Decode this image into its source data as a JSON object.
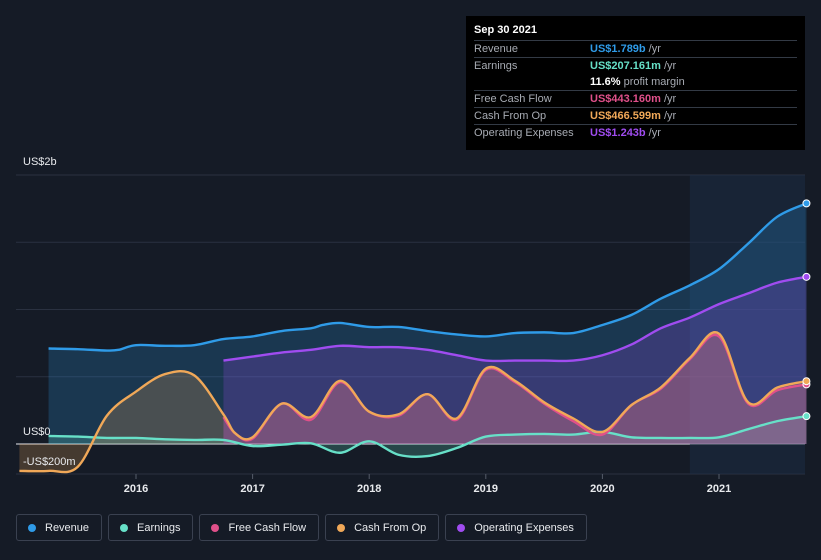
{
  "tooltip": {
    "date": "Sep 30 2021",
    "rows": [
      {
        "label": "Revenue",
        "value": "US$1.789b",
        "unit": "/yr",
        "color": "#2f9be8"
      },
      {
        "label": "Earnings",
        "value": "US$207.161m",
        "unit": "/yr",
        "color": "#67e0c8"
      },
      {
        "label": "",
        "value": "11.6%",
        "unit": "profit margin",
        "color": "#ffffff"
      },
      {
        "label": "Free Cash Flow",
        "value": "US$443.160m",
        "unit": "/yr",
        "color": "#e0508a"
      },
      {
        "label": "Cash From Op",
        "value": "US$466.599m",
        "unit": "/yr",
        "color": "#f0a858"
      },
      {
        "label": "Operating Expenses",
        "value": "US$1.243b",
        "unit": "/yr",
        "color": "#a04cf0"
      }
    ]
  },
  "legend": [
    {
      "label": "Revenue",
      "color": "#2f9be8"
    },
    {
      "label": "Earnings",
      "color": "#67e0c8"
    },
    {
      "label": "Free Cash Flow",
      "color": "#e0508a"
    },
    {
      "label": "Cash From Op",
      "color": "#f0a858"
    },
    {
      "label": "Operating Expenses",
      "color": "#a04cf0"
    }
  ],
  "chart_data": {
    "type": "area",
    "y_labels": {
      "top": "US$2b",
      "zero": "US$0",
      "bottom": "-US$200m"
    },
    "ylim": [
      -200,
      2000
    ],
    "x_ticks": [
      "2016",
      "2017",
      "2018",
      "2019",
      "2020",
      "2021"
    ],
    "x_tick_values": [
      2016,
      2017,
      2018,
      2019,
      2020,
      2021
    ],
    "series": [
      {
        "name": "Revenue",
        "color": "#2f9be8",
        "x": [
          2015.25,
          2015.5,
          2015.75,
          2015.85,
          2016.0,
          2016.25,
          2016.5,
          2016.75,
          2017.0,
          2017.25,
          2017.5,
          2017.6,
          2017.75,
          2018.0,
          2018.25,
          2018.5,
          2018.75,
          2019.0,
          2019.25,
          2019.5,
          2019.75,
          2020.0,
          2020.25,
          2020.5,
          2020.75,
          2021.0,
          2021.25,
          2021.5,
          2021.75
        ],
        "values": [
          710,
          705,
          695,
          700,
          735,
          730,
          735,
          780,
          800,
          840,
          860,
          885,
          900,
          870,
          870,
          840,
          815,
          800,
          825,
          830,
          825,
          885,
          960,
          1080,
          1180,
          1300,
          1490,
          1690,
          1789
        ]
      },
      {
        "name": "Earnings",
        "color": "#67e0c8",
        "x": [
          2015.25,
          2015.5,
          2015.75,
          2016.0,
          2016.25,
          2016.5,
          2016.75,
          2017.0,
          2017.25,
          2017.5,
          2017.75,
          2018.0,
          2018.25,
          2018.5,
          2018.75,
          2019.0,
          2019.25,
          2019.5,
          2019.75,
          2020.0,
          2020.25,
          2020.5,
          2020.75,
          2021.0,
          2021.25,
          2021.5,
          2021.75
        ],
        "values": [
          60,
          55,
          45,
          45,
          35,
          30,
          30,
          -15,
          -5,
          5,
          -65,
          20,
          -80,
          -90,
          -30,
          55,
          70,
          75,
          70,
          90,
          50,
          45,
          45,
          50,
          110,
          170,
          207
        ]
      },
      {
        "name": "Free Cash Flow",
        "color": "#e0508a",
        "x": [
          2016.75,
          2016.85,
          2017.0,
          2017.25,
          2017.5,
          2017.75,
          2018.0,
          2018.25,
          2018.5,
          2018.75,
          2019.0,
          2019.25,
          2019.5,
          2019.75,
          2020.0,
          2020.25,
          2020.5,
          2020.75,
          2021.0,
          2021.25,
          2021.5,
          2021.75
        ],
        "values": [
          200,
          80,
          40,
          300,
          180,
          460,
          240,
          210,
          370,
          180,
          550,
          460,
          300,
          170,
          70,
          290,
          410,
          630,
          800,
          300,
          400,
          443
        ]
      },
      {
        "name": "Cash From Op",
        "color": "#f0a858",
        "x": [
          2015.0,
          2015.25,
          2015.5,
          2015.75,
          2016.0,
          2016.25,
          2016.5,
          2016.75,
          2016.85,
          2017.0,
          2017.25,
          2017.5,
          2017.75,
          2018.0,
          2018.25,
          2018.5,
          2018.75,
          2019.0,
          2019.25,
          2019.5,
          2019.75,
          2020.0,
          2020.25,
          2020.5,
          2020.75,
          2021.0,
          2021.25,
          2021.5,
          2021.75
        ],
        "values": [
          -200,
          -200,
          -170,
          210,
          390,
          520,
          510,
          220,
          80,
          50,
          300,
          200,
          470,
          240,
          220,
          370,
          190,
          560,
          470,
          310,
          190,
          90,
          290,
          420,
          640,
          820,
          310,
          420,
          467
        ]
      },
      {
        "name": "Operating Expenses",
        "color": "#a04cf0",
        "x": [
          2016.75,
          2017.0,
          2017.25,
          2017.5,
          2017.75,
          2018.0,
          2018.25,
          2018.5,
          2018.75,
          2019.0,
          2019.25,
          2019.5,
          2019.75,
          2020.0,
          2020.25,
          2020.5,
          2020.75,
          2021.0,
          2021.25,
          2021.5,
          2021.75
        ],
        "values": [
          620,
          650,
          680,
          700,
          730,
          720,
          720,
          700,
          660,
          620,
          620,
          620,
          620,
          660,
          740,
          860,
          940,
          1040,
          1120,
          1200,
          1243
        ]
      }
    ]
  }
}
